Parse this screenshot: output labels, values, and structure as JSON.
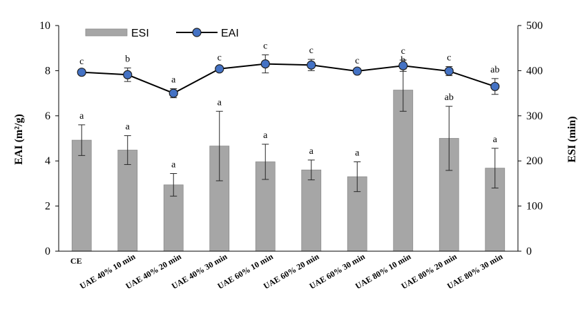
{
  "chart_data": {
    "type": "bar+line",
    "categories": [
      "CE",
      "UAE 40% 10 min",
      "UAE 40% 20 min",
      "UAE 40% 30 min",
      "UAE 60% 10 min",
      "UAE 60% 20 min",
      "UAE 60% 30 min",
      "UAE 80% 10 min",
      "UAE 80% 20 min",
      "UAE 80% 30 min"
    ],
    "y_left": {
      "label": "EAI (m²/g)",
      "ylim": [
        0,
        10
      ],
      "ticks": [
        "0",
        "2",
        "4",
        "6",
        "8",
        "10"
      ]
    },
    "y_right": {
      "label": "ESI (min)",
      "ylim": [
        0,
        500
      ],
      "ticks": [
        "0",
        "100",
        "200",
        "300",
        "400",
        "500"
      ]
    },
    "series": [
      {
        "name": "ESI",
        "kind": "bar",
        "axis": "right",
        "color": "#a6a6a6",
        "values": [
          246,
          224,
          147,
          233,
          198,
          180,
          165,
          357,
          250,
          184
        ],
        "errors": [
          34,
          32,
          25,
          77,
          39,
          22,
          33,
          47,
          71,
          44
        ],
        "letters": [
          "a",
          "a",
          "a",
          "a",
          "a",
          "a",
          "a",
          "b",
          "ab",
          "a"
        ]
      },
      {
        "name": "EAI",
        "kind": "line",
        "axis": "left",
        "color": "#4472c4",
        "values": [
          7.93,
          7.82,
          7.0,
          8.08,
          8.3,
          8.25,
          7.98,
          8.22,
          7.98,
          7.3
        ],
        "errors": [
          0.08,
          0.3,
          0.2,
          0.1,
          0.4,
          0.25,
          0.07,
          0.25,
          0.2,
          0.35
        ],
        "letters": [
          "c",
          "b",
          "a",
          "c",
          "c",
          "c",
          "c",
          "c",
          "c",
          "ab"
        ]
      }
    ],
    "legend": {
      "position": "top-left",
      "entries": [
        "ESI",
        "EAI"
      ]
    },
    "grid": false
  }
}
